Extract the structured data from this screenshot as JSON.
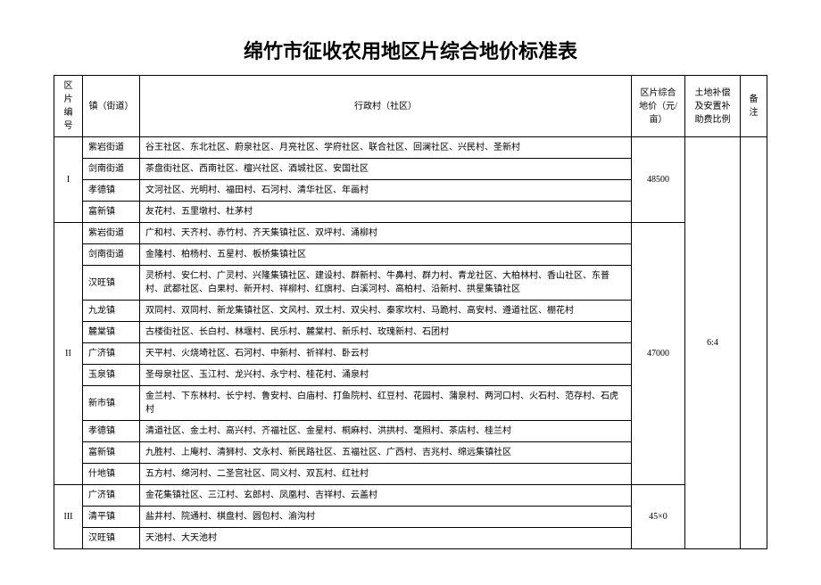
{
  "title": "绵竹市征收农用地区片综合地价标准表",
  "columns": {
    "code": "区片编号",
    "town": "镇（街道）",
    "village": "行政村（社区）",
    "price": "区片综合地价（元/亩）",
    "ratio": "土地补偿及安置补助费比例",
    "note": "备注"
  },
  "ratio_value": "6:4",
  "groups": [
    {
      "code": "I",
      "price": "48500",
      "rows": [
        {
          "town": "紫岩街道",
          "village": "谷王社区、东北社区、蔚泉社区、月亮社区、学府社区、联合社区、回澜社区、兴民村、圣新村"
        },
        {
          "town": "剑南街道",
          "village": "茶盘街社区、西南社区、檀兴社区、酒城社区、安国社区"
        },
        {
          "town": "孝德镇",
          "village": "文河社区、光明村、福田村、石河村、清华社区、年画村"
        },
        {
          "town": "富新镇",
          "village": "友花村、五里墩村、杜茅村"
        }
      ]
    },
    {
      "code": "II",
      "price": "47000",
      "rows": [
        {
          "town": "紫岩街道",
          "village": "广和村、天齐村、赤竹村、齐天集镇社区、双坪村、涌柳村"
        },
        {
          "town": "剑南街道",
          "village": "金隆村、柏杨村、五星村、板桥集镇社区"
        },
        {
          "town": "汉旺镇",
          "village": "灵桥村、安仁村、广灵村、兴隆集镇社区、建设村、群新村、牛鼻村、群力村、青龙社区、大柏林村、香山社区、东普村、武都社区、白果村、新开村、祥柳村、红旗村、白溪河村、高柏村、沿新村、拱星集镇社区"
        },
        {
          "town": "九龙镇",
          "village": "双同村、双同村、新龙集镇社区、文风村、双土村、双尖村、秦家坎村、马跪村、高安村、遵道社区、棚花村"
        },
        {
          "town": "麓棠镇",
          "village": "古楼街社区、长白村、林堰村、民乐村、麓棠村、新乐村、玫瑰新村、石团村"
        },
        {
          "town": "广济镇",
          "village": "天平村、火烧埼社区、石河村、中新村、祈祥村、卧云村"
        },
        {
          "town": "玉泉镇",
          "village": "圣母泉社区、玉江村、龙兴村、永宁村、桂花村、涌泉村"
        },
        {
          "town": "新市镇",
          "village": "金兰村、下东林村、长宁村、鲁安村、白庙村、打鱼院村、红豆村、花园村、蒲泉村、两河口村、火石村、范存村、石虎村"
        },
        {
          "town": "孝德镇",
          "village": "清道社区、金土村、高兴村、齐福社区、金星村、桐麻村、洪拱村、毫照村、茶店村、桂兰村"
        },
        {
          "town": "富新镇",
          "village": "九胜村、上庵村、清狮村、文永村、新民路社区、五福社区、广西村、吉兆村、绵远集镇社区"
        },
        {
          "town": "什地镇",
          "village": "五方村、绵河村、二圣宫社区、同义村、双瓦村、红社村"
        }
      ]
    },
    {
      "code": "III",
      "price": "45×0",
      "rows": [
        {
          "town": "广济镇",
          "village": "金花集镇社区、三江村、玄郎村、凤凰村、吉祥村、云盖村"
        },
        {
          "town": "清平镇",
          "village": "盐井村、院通村、棋盘村、圆包村、渝沟村"
        },
        {
          "town": "汉旺镇",
          "village": "天池村、大天池村"
        }
      ]
    }
  ]
}
